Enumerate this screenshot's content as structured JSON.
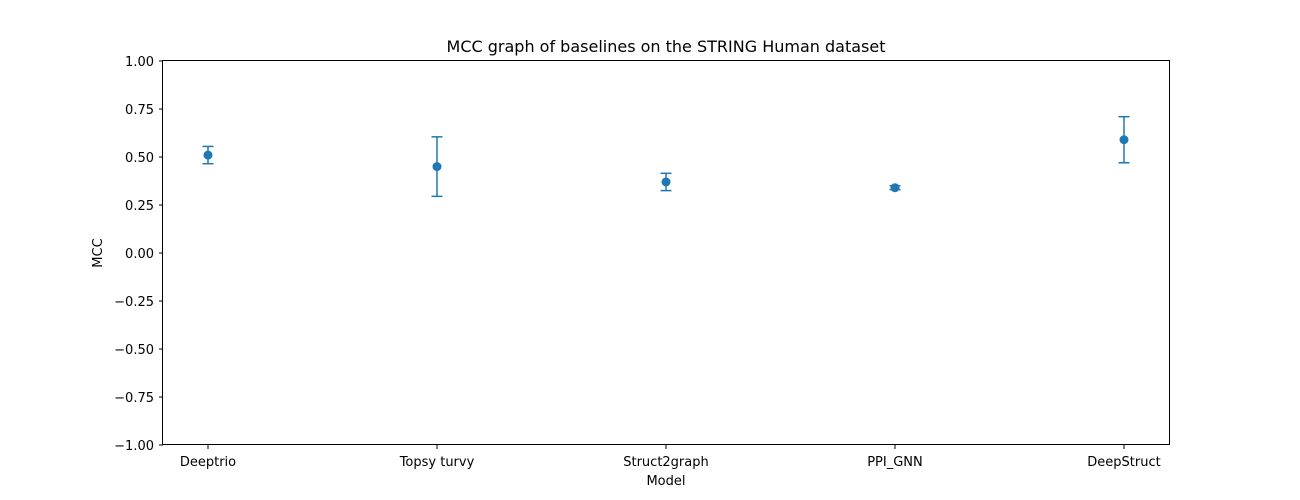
{
  "chart_data": {
    "type": "scatter",
    "title": "MCC graph of baselines on the STRING Human dataset",
    "xlabel": "Model",
    "ylabel": "MCC",
    "ylim": [
      -1.0,
      1.0
    ],
    "yticks": [
      "1.00",
      "0.75",
      "0.50",
      "0.25",
      "0.00",
      "−0.25",
      "−0.50",
      "−0.75",
      "−1.00"
    ],
    "ytick_values": [
      1.0,
      0.75,
      0.5,
      0.25,
      0.0,
      -0.25,
      -0.5,
      -0.75,
      -1.0
    ],
    "categories": [
      "Deeptrio",
      "Topsy turvy",
      "Struct2graph",
      "PPI_GNN",
      "DeepStruct"
    ],
    "values": [
      0.51,
      0.45,
      0.37,
      0.34,
      0.59
    ],
    "error": [
      0.045,
      0.155,
      0.045,
      0.01,
      0.12
    ],
    "grid": false,
    "legend": "none",
    "color": "#1f77b4"
  }
}
